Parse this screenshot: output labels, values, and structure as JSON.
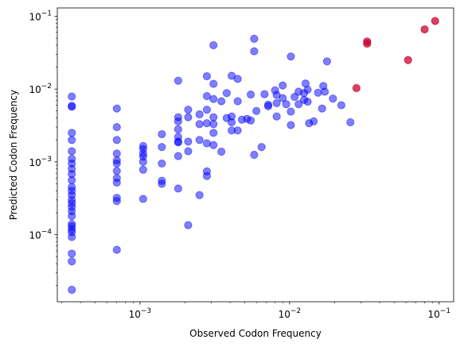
{
  "chart_data": {
    "type": "scatter",
    "title": "",
    "xlabel": "Observed Codon Frequency",
    "ylabel": "Predicted Codon Frequency",
    "xscale": "log",
    "yscale": "log",
    "xlim": [
      0.00028,
      0.125
    ],
    "ylim": [
      1.2e-05,
      0.13
    ],
    "grid": false,
    "x_ticks": [
      {
        "value": 0.001,
        "base": "10",
        "exp": "−3"
      },
      {
        "value": 0.01,
        "base": "10",
        "exp": "−2"
      },
      {
        "value": 0.1,
        "base": "10",
        "exp": "−1"
      }
    ],
    "y_ticks": [
      {
        "value": 0.0001,
        "base": "10",
        "exp": "−4"
      },
      {
        "value": 0.001,
        "base": "10",
        "exp": "−3"
      },
      {
        "value": 0.01,
        "base": "10",
        "exp": "−2"
      },
      {
        "value": 0.1,
        "base": "10",
        "exp": "−1"
      }
    ],
    "colors": {
      "blue_series": "#0000ff",
      "red_series": "#cc0033",
      "axes": "#000000"
    },
    "series": [
      {
        "color": "#0000ff",
        "alpha": 0.5,
        "points": [
          [
            0.00035,
            0.0079
          ],
          [
            0.00035,
            0.0059
          ],
          [
            0.00035,
            0.0057
          ],
          [
            0.00035,
            0.0025
          ],
          [
            0.00035,
            0.002
          ],
          [
            0.00035,
            0.0014
          ],
          [
            0.00035,
            0.0011
          ],
          [
            0.00035,
            0.00095
          ],
          [
            0.00035,
            0.0008
          ],
          [
            0.00035,
            0.00068
          ],
          [
            0.00035,
            0.00056
          ],
          [
            0.00035,
            0.00045
          ],
          [
            0.00035,
            0.0004
          ],
          [
            0.00035,
            0.00035
          ],
          [
            0.00035,
            0.0003
          ],
          [
            0.00035,
            0.00027
          ],
          [
            0.00035,
            0.00024
          ],
          [
            0.00035,
            0.00021
          ],
          [
            0.00035,
            0.00018
          ],
          [
            0.00035,
            0.00014
          ],
          [
            0.00035,
            0.00013
          ],
          [
            0.00035,
            0.000118
          ],
          [
            0.00035,
            0.000108
          ],
          [
            0.00035,
            9.3e-05
          ],
          [
            0.00035,
            5.5e-05
          ],
          [
            0.00035,
            4.3e-05
          ],
          [
            0.00035,
            1.75e-05
          ],
          [
            0.0007,
            0.0054
          ],
          [
            0.0007,
            0.003
          ],
          [
            0.0007,
            0.002
          ],
          [
            0.0007,
            0.0013
          ],
          [
            0.0007,
            0.00105
          ],
          [
            0.0007,
            0.00095
          ],
          [
            0.0007,
            0.00075
          ],
          [
            0.0007,
            0.0006
          ],
          [
            0.0007,
            0.00052
          ],
          [
            0.0007,
            0.00032
          ],
          [
            0.0007,
            0.00029
          ],
          [
            0.0007,
            6.2e-05
          ],
          [
            0.00105,
            0.00165
          ],
          [
            0.00105,
            0.0015
          ],
          [
            0.00105,
            0.0013
          ],
          [
            0.00105,
            0.00118
          ],
          [
            0.00105,
            0.001
          ],
          [
            0.00105,
            0.00078
          ],
          [
            0.00105,
            0.00031
          ],
          [
            0.0014,
            0.0024
          ],
          [
            0.0014,
            0.0016
          ],
          [
            0.0014,
            0.00095
          ],
          [
            0.0014,
            0.00055
          ],
          [
            0.0014,
            0.0005
          ],
          [
            0.0018,
            0.013
          ],
          [
            0.0018,
            0.0041
          ],
          [
            0.0018,
            0.0036
          ],
          [
            0.0018,
            0.0028
          ],
          [
            0.0018,
            0.0022
          ],
          [
            0.0018,
            0.0019
          ],
          [
            0.0018,
            0.00185
          ],
          [
            0.0018,
            0.0012
          ],
          [
            0.0018,
            0.00043
          ],
          [
            0.0021,
            0.0052
          ],
          [
            0.0021,
            0.0041
          ],
          [
            0.0021,
            0.0019
          ],
          [
            0.0021,
            0.0014
          ],
          [
            0.0021,
            0.000135
          ],
          [
            0.0025,
            0.0045
          ],
          [
            0.0025,
            0.0033
          ],
          [
            0.0025,
            0.002
          ],
          [
            0.0025,
            0.00035
          ],
          [
            0.0028,
            0.015
          ],
          [
            0.0028,
            0.008
          ],
          [
            0.0028,
            0.0052
          ],
          [
            0.0028,
            0.0034
          ],
          [
            0.0028,
            0.0018
          ],
          [
            0.0028,
            0.00074
          ],
          [
            0.0028,
            0.00064
          ],
          [
            0.0031,
            0.04
          ],
          [
            0.0031,
            0.0118
          ],
          [
            0.0031,
            0.0073
          ],
          [
            0.0031,
            0.0041
          ],
          [
            0.0031,
            0.0033
          ],
          [
            0.0031,
            0.0025
          ],
          [
            0.0031,
            0.0017
          ],
          [
            0.0035,
            0.0068
          ],
          [
            0.0035,
            0.00138
          ],
          [
            0.0038,
            0.0088
          ],
          [
            0.0038,
            0.004
          ],
          [
            0.0041,
            0.0152
          ],
          [
            0.0041,
            0.0042
          ],
          [
            0.0041,
            0.0035
          ],
          [
            0.0041,
            0.0027
          ],
          [
            0.0045,
            0.0138
          ],
          [
            0.0045,
            0.0068
          ],
          [
            0.0045,
            0.0027
          ],
          [
            0.0048,
            0.0038
          ],
          [
            0.0052,
            0.0039
          ],
          [
            0.0055,
            0.0084
          ],
          [
            0.0055,
            0.0037
          ],
          [
            0.0058,
            0.049
          ],
          [
            0.0058,
            0.033
          ],
          [
            0.0058,
            0.00125
          ],
          [
            0.006,
            0.005
          ],
          [
            0.0065,
            0.0016
          ],
          [
            0.0068,
            0.0085
          ],
          [
            0.0072,
            0.0058
          ],
          [
            0.0072,
            0.0061
          ],
          [
            0.008,
            0.0096
          ],
          [
            0.0082,
            0.0083
          ],
          [
            0.0082,
            0.0064
          ],
          [
            0.0082,
            0.0042
          ],
          [
            0.009,
            0.0112
          ],
          [
            0.009,
            0.0075
          ],
          [
            0.0095,
            0.0062
          ],
          [
            0.0102,
            0.028
          ],
          [
            0.0102,
            0.0049
          ],
          [
            0.0102,
            0.0032
          ],
          [
            0.0108,
            0.0078
          ],
          [
            0.0115,
            0.0092
          ],
          [
            0.0115,
            0.0062
          ],
          [
            0.0125,
            0.0088
          ],
          [
            0.0125,
            0.0071
          ],
          [
            0.0128,
            0.0119
          ],
          [
            0.0132,
            0.0098
          ],
          [
            0.0132,
            0.0067
          ],
          [
            0.0135,
            0.0034
          ],
          [
            0.0145,
            0.0036
          ],
          [
            0.0155,
            0.0089
          ],
          [
            0.0165,
            0.0054
          ],
          [
            0.0168,
            0.011
          ],
          [
            0.0172,
            0.0092
          ],
          [
            0.0178,
            0.024
          ],
          [
            0.0195,
            0.0074
          ],
          [
            0.0222,
            0.006
          ],
          [
            0.0255,
            0.0035
          ]
        ]
      },
      {
        "color": "#cc0033",
        "alpha": 0.75,
        "points": [
          [
            0.028,
            0.0103
          ],
          [
            0.033,
            0.045
          ],
          [
            0.033,
            0.042
          ],
          [
            0.062,
            0.025
          ],
          [
            0.08,
            0.066
          ],
          [
            0.094,
            0.086
          ]
        ]
      }
    ]
  }
}
